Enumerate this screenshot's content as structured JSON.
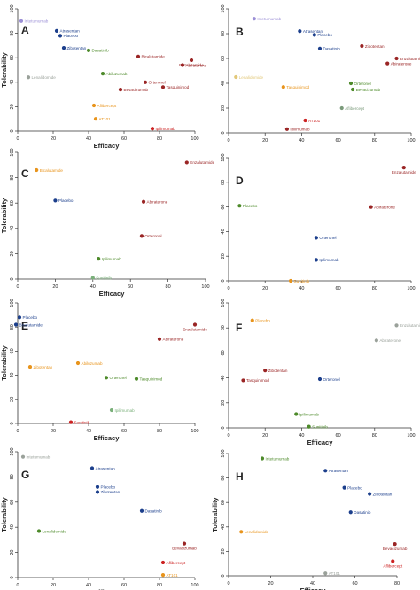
{
  "chart_data": [
    {
      "type": "scatter",
      "panel_label": "A",
      "xlabel": "Efficacy",
      "ylabel": "Tolerability",
      "xlim": [
        0,
        100
      ],
      "ylim": [
        0,
        100
      ],
      "xticks": [
        "0",
        "20",
        "40",
        "60",
        "80",
        "100"
      ],
      "yticks": [
        "0",
        "20",
        "40",
        "60",
        "80",
        "100"
      ],
      "points": [
        {
          "label": "Intetumumab",
          "x": 2,
          "y": 90,
          "color": "#9b8fd6"
        },
        {
          "label": "Atrasentan",
          "x": 22,
          "y": 82,
          "color": "#1c3f8c"
        },
        {
          "label": "Placebo",
          "x": 24,
          "y": 78,
          "color": "#1c3f8c"
        },
        {
          "label": "Zibotentan",
          "x": 26,
          "y": 68,
          "color": "#1c3f8c"
        },
        {
          "label": "Dasatinib",
          "x": 40,
          "y": 66,
          "color": "#4d8a2a"
        },
        {
          "label": "Bicalutamide",
          "x": 68,
          "y": 61,
          "color": "#9a2525"
        },
        {
          "label": "Enzalutamide",
          "x": 98,
          "y": 58,
          "color": "#9a2525"
        },
        {
          "label": "Abiraterone",
          "x": 93,
          "y": 54,
          "color": "#9a2525"
        },
        {
          "label": "Abiluzumab",
          "x": 48,
          "y": 47,
          "color": "#4d8a2a"
        },
        {
          "label": "Lenalidomide",
          "x": 6,
          "y": 44,
          "color": "#9aa19a"
        },
        {
          "label": "Orteronel",
          "x": 72,
          "y": 40,
          "color": "#9a2525"
        },
        {
          "label": "Bevacizumab",
          "x": 58,
          "y": 34,
          "color": "#9a2525"
        },
        {
          "label": "Tasquinimod",
          "x": 82,
          "y": 36,
          "color": "#9a2525"
        },
        {
          "label": "Aflibercept",
          "x": 43,
          "y": 21,
          "color": "#e8941c"
        },
        {
          "label": "AT101",
          "x": 44,
          "y": 10,
          "color": "#e8941c"
        },
        {
          "label": "Ipilimumab",
          "x": 76,
          "y": 2,
          "color": "#cc2222"
        }
      ]
    },
    {
      "type": "scatter",
      "panel_label": "B",
      "xlabel": "",
      "ylabel": "",
      "xlim": [
        0,
        100
      ],
      "ylim": [
        0,
        100
      ],
      "xticks": [
        "0",
        "20",
        "40",
        "60",
        "80",
        "100"
      ],
      "yticks": [
        "0",
        "20",
        "40",
        "60",
        "80",
        "100"
      ],
      "points": [
        {
          "label": "Intetumumab",
          "x": 14,
          "y": 92,
          "color": "#9b8fd6"
        },
        {
          "label": "Atrasentan",
          "x": 39,
          "y": 82,
          "color": "#1c3f8c"
        },
        {
          "label": "Placebo",
          "x": 47,
          "y": 79,
          "color": "#1c3f8c"
        },
        {
          "label": "Dasatinib",
          "x": 50,
          "y": 68,
          "color": "#1c3f8c"
        },
        {
          "label": "Zibotentan",
          "x": 73,
          "y": 70,
          "color": "#9a2525"
        },
        {
          "label": "Enzalutamide",
          "x": 92,
          "y": 60,
          "color": "#9a2525"
        },
        {
          "label": "Abiraterone",
          "x": 87,
          "y": 56,
          "color": "#9a2525"
        },
        {
          "label": "Lenalidomide",
          "x": 4,
          "y": 45,
          "color": "#e2c87a"
        },
        {
          "label": "Tasquinimod",
          "x": 30,
          "y": 37,
          "color": "#e8941c"
        },
        {
          "label": "Orteronel",
          "x": 67,
          "y": 40,
          "color": "#4d8a2a"
        },
        {
          "label": "Bevacizumab",
          "x": 68,
          "y": 35,
          "color": "#4d8a2a"
        },
        {
          "label": "Aflibercept",
          "x": 62,
          "y": 20,
          "color": "#7a9a7a"
        },
        {
          "label": "AT101",
          "x": 42,
          "y": 10,
          "color": "#cc2222"
        },
        {
          "label": "Ipilimumab",
          "x": 32,
          "y": 3,
          "color": "#9a2525"
        }
      ]
    },
    {
      "type": "scatter",
      "panel_label": "C",
      "xlabel": "Efficacy",
      "ylabel": "Tolerability",
      "xlim": [
        0,
        100
      ],
      "ylim": [
        0,
        100
      ],
      "xticks": [
        "0",
        "20",
        "40",
        "60",
        "80",
        "100"
      ],
      "yticks": [
        "0",
        "20",
        "40",
        "60",
        "80",
        "100"
      ],
      "points": [
        {
          "label": "Enzalutamide",
          "x": 90,
          "y": 92,
          "color": "#9a2525"
        },
        {
          "label": "Bicalutamide",
          "x": 10,
          "y": 86,
          "color": "#e8941c"
        },
        {
          "label": "Placebo",
          "x": 20,
          "y": 62,
          "color": "#1c3f8c"
        },
        {
          "label": "Abiraterone",
          "x": 67,
          "y": 61,
          "color": "#9a2525"
        },
        {
          "label": "Orteronel",
          "x": 66,
          "y": 34,
          "color": "#9a2525"
        },
        {
          "label": "Ipilimumab",
          "x": 43,
          "y": 16,
          "color": "#4d8a2a"
        },
        {
          "label": "Sunitinib",
          "x": 40,
          "y": 1,
          "color": "#7ab07a"
        }
      ]
    },
    {
      "type": "scatter",
      "panel_label": "D",
      "xlabel": "",
      "ylabel": "",
      "xlim": [
        0,
        100
      ],
      "ylim": [
        0,
        100
      ],
      "xticks": [
        "0",
        "20",
        "40",
        "60",
        "80",
        "100"
      ],
      "yticks": [
        "0",
        "20",
        "40",
        "60",
        "80",
        "100"
      ],
      "points": [
        {
          "label": "Enzalutamide",
          "x": 96,
          "y": 92,
          "color": "#9a2525"
        },
        {
          "label": "Placebo",
          "x": 6,
          "y": 61,
          "color": "#4d8a2a"
        },
        {
          "label": "Abiraterone",
          "x": 78,
          "y": 60,
          "color": "#9a2525"
        },
        {
          "label": "Orteronel",
          "x": 48,
          "y": 35,
          "color": "#1c3f8c"
        },
        {
          "label": "Ipilimumab",
          "x": 48,
          "y": 17,
          "color": "#1c3f8c"
        },
        {
          "label": "Sunitinib",
          "x": 34,
          "y": 0,
          "color": "#e8941c"
        }
      ]
    },
    {
      "type": "scatter",
      "panel_label": "E",
      "xlabel": "Efficacy",
      "ylabel": "Tolerability",
      "xlim": [
        0,
        100
      ],
      "ylim": [
        0,
        100
      ],
      "xticks": [
        "0",
        "20",
        "40",
        "60",
        "80",
        "100"
      ],
      "yticks": [
        "0",
        "20",
        "40",
        "60",
        "80",
        "100"
      ],
      "points": [
        {
          "label": "Placebo",
          "x": 1,
          "y": 88,
          "color": "#1c3f8c"
        },
        {
          "label": "Bicalutamide",
          "x": -1,
          "y": 82,
          "color": "#1c3f8c"
        },
        {
          "label": "Enzalutamide",
          "x": 100,
          "y": 82,
          "color": "#9a2525"
        },
        {
          "label": "Abiraterone",
          "x": 80,
          "y": 70,
          "color": "#9a2525"
        },
        {
          "label": "Abiluzumab",
          "x": 34,
          "y": 50,
          "color": "#e8941c"
        },
        {
          "label": "Zibotentan",
          "x": 7,
          "y": 47,
          "color": "#e8941c"
        },
        {
          "label": "Orteronel",
          "x": 50,
          "y": 38,
          "color": "#4d8a2a"
        },
        {
          "label": "Tasquinimod",
          "x": 67,
          "y": 37,
          "color": "#4d8a2a"
        },
        {
          "label": "Ipilimumab",
          "x": 53,
          "y": 11,
          "color": "#7ab07a"
        },
        {
          "label": "Sunitinib",
          "x": 30,
          "y": 1,
          "color": "#cc2222"
        }
      ]
    },
    {
      "type": "scatter",
      "panel_label": "F",
      "xlabel": "Efficacy",
      "ylabel": "",
      "xlim": [
        0,
        100
      ],
      "ylim": [
        0,
        100
      ],
      "xticks": [
        "0",
        "20",
        "40",
        "60",
        "80",
        "100"
      ],
      "yticks": [
        "0",
        "20",
        "40",
        "60",
        "80",
        "100"
      ],
      "points": [
        {
          "label": "Placebo",
          "x": 13,
          "y": 86,
          "color": "#e8941c"
        },
        {
          "label": "Enzalutamide",
          "x": 92,
          "y": 82,
          "color": "#9aa19a"
        },
        {
          "label": "Abiraterone",
          "x": 81,
          "y": 70,
          "color": "#9aa19a"
        },
        {
          "label": "Zibotentan",
          "x": 20,
          "y": 46,
          "color": "#9a2525"
        },
        {
          "label": "Tasquinimod",
          "x": 8,
          "y": 38,
          "color": "#9a2525"
        },
        {
          "label": "Orteronel",
          "x": 50,
          "y": 39,
          "color": "#1c3f8c"
        },
        {
          "label": "Ipilimumab",
          "x": 37,
          "y": 11,
          "color": "#4d8a2a"
        },
        {
          "label": "Sunitinib",
          "x": 44,
          "y": 1,
          "color": "#4d8a2a"
        }
      ]
    },
    {
      "type": "scatter",
      "panel_label": "G",
      "xlabel": "Efficacy",
      "ylabel": "Tolerability",
      "xlim": [
        0,
        100
      ],
      "ylim": [
        0,
        100
      ],
      "xticks": [
        "0",
        "20",
        "40",
        "60",
        "80",
        "100"
      ],
      "yticks": [
        "0",
        "20",
        "40",
        "60",
        "80",
        "100"
      ],
      "points": [
        {
          "label": "Intetumumab",
          "x": 3,
          "y": 96,
          "color": "#9aa19a"
        },
        {
          "label": "Atrasentan",
          "x": 42,
          "y": 87,
          "color": "#1c3f8c"
        },
        {
          "label": "Placebo",
          "x": 45,
          "y": 72,
          "color": "#1c3f8c"
        },
        {
          "label": "Zibotentan",
          "x": 45,
          "y": 68,
          "color": "#1c3f8c"
        },
        {
          "label": "Dasatinib",
          "x": 70,
          "y": 53,
          "color": "#1c3f8c"
        },
        {
          "label": "Lenalidomide",
          "x": 12,
          "y": 37,
          "color": "#4d8a2a"
        },
        {
          "label": "Bevacizumab",
          "x": 94,
          "y": 27,
          "color": "#9a2525"
        },
        {
          "label": "Aflibercept",
          "x": 82,
          "y": 12,
          "color": "#cc2222"
        },
        {
          "label": "AT101",
          "x": 82,
          "y": 2,
          "color": "#e8941c"
        }
      ]
    },
    {
      "type": "scatter",
      "panel_label": "H",
      "xlabel": "Efficacy",
      "ylabel": "Tolerability",
      "xlim": [
        0,
        80
      ],
      "ylim": [
        0,
        100
      ],
      "xticks": [
        "0",
        "20",
        "40",
        "60",
        "80"
      ],
      "yticks": [
        "0",
        "20",
        "40",
        "60",
        "80",
        "100"
      ],
      "points": [
        {
          "label": "Intetumumab",
          "x": 16,
          "y": 96,
          "color": "#4d8a2a"
        },
        {
          "label": "Atrasentan",
          "x": 46,
          "y": 86,
          "color": "#1c3f8c"
        },
        {
          "label": "Placebo",
          "x": 55,
          "y": 72,
          "color": "#1c3f8c"
        },
        {
          "label": "Zibotentan",
          "x": 67,
          "y": 67,
          "color": "#1c3f8c"
        },
        {
          "label": "Dasatinib",
          "x": 58,
          "y": 52,
          "color": "#1c3f8c"
        },
        {
          "label": "Lenalidomide",
          "x": 6,
          "y": 36,
          "color": "#e8941c"
        },
        {
          "label": "Bevacizumab",
          "x": 79,
          "y": 26,
          "color": "#9a2525"
        },
        {
          "label": "Aflibercept",
          "x": 78,
          "y": 12,
          "color": "#cc2222"
        },
        {
          "label": "AT101",
          "x": 46,
          "y": 2,
          "color": "#9aa19a"
        }
      ]
    }
  ]
}
